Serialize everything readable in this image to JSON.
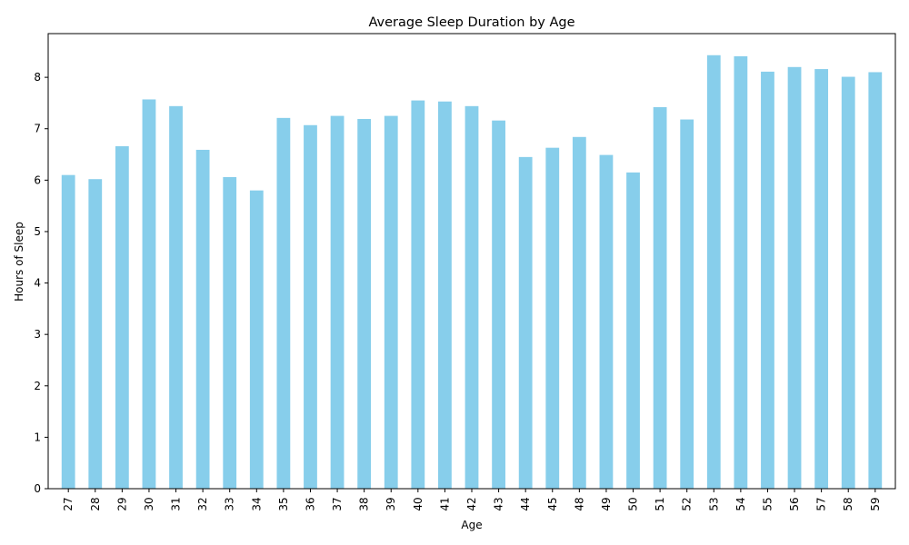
{
  "chart_data": {
    "type": "bar",
    "title": "Average Sleep Duration by Age",
    "xlabel": "Age",
    "ylabel": "Hours of Sleep",
    "ylim": [
      0,
      8.85
    ],
    "yticks": [
      0,
      1,
      2,
      3,
      4,
      5,
      6,
      7,
      8
    ],
    "grid": false,
    "legend": "none",
    "bar_color": "#87CEEB",
    "categories": [
      "27",
      "28",
      "29",
      "30",
      "31",
      "32",
      "33",
      "34",
      "35",
      "36",
      "37",
      "38",
      "39",
      "40",
      "41",
      "42",
      "43",
      "44",
      "45",
      "48",
      "49",
      "50",
      "51",
      "52",
      "53",
      "54",
      "55",
      "56",
      "57",
      "58",
      "59"
    ],
    "values": [
      6.1,
      6.02,
      6.66,
      7.57,
      7.44,
      6.59,
      6.06,
      5.8,
      7.21,
      7.07,
      7.25,
      7.19,
      7.25,
      7.55,
      7.53,
      7.44,
      7.16,
      6.45,
      6.63,
      6.84,
      6.49,
      6.15,
      7.42,
      7.18,
      8.43,
      8.41,
      8.11,
      8.2,
      8.16,
      8.01,
      8.1
    ]
  }
}
